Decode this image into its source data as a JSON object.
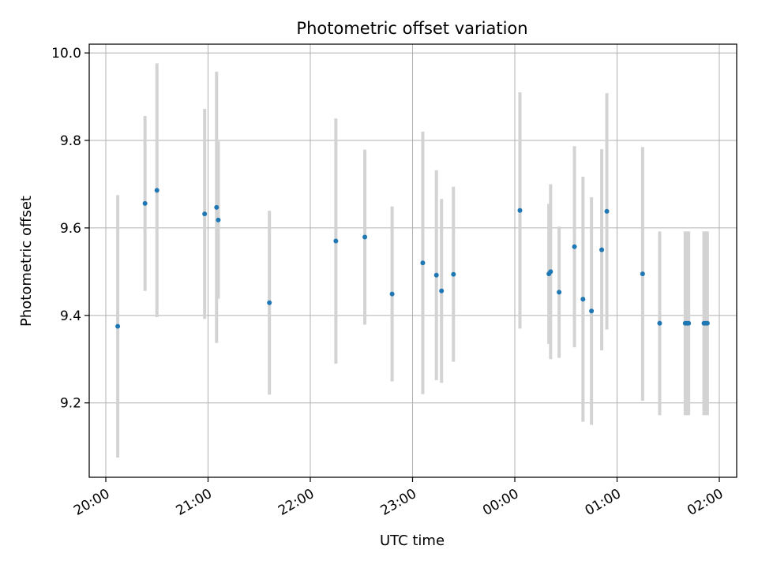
{
  "chart_data": {
    "type": "scatter",
    "title": "Photometric offset variation",
    "xlabel": "UTC time",
    "ylabel": "Photometric offset",
    "x_tick_labels": [
      "20:00",
      "21:00",
      "22:00",
      "23:00",
      "00:00",
      "01:00",
      "02:00"
    ],
    "y_tick_labels": [
      "9.2",
      "9.4",
      "9.6",
      "9.8",
      "10.0"
    ],
    "y_ticks": [
      9.2,
      9.4,
      9.6,
      9.8,
      10.0
    ],
    "ylim": [
      9.03,
      10.02
    ],
    "grid": true,
    "colors": {
      "point": "#1f77b4",
      "errorbar": "#d3d3d3",
      "grid": "#b0b0b0"
    },
    "points": [
      {
        "time": "20:07",
        "y": 9.375,
        "yerr": 0.3
      },
      {
        "time": "20:23",
        "y": 9.656,
        "yerr": 0.2
      },
      {
        "time": "20:30",
        "y": 9.686,
        "yerr": 0.29
      },
      {
        "time": "20:58",
        "y": 9.632,
        "yerr": 0.24
      },
      {
        "time": "21:05",
        "y": 9.647,
        "yerr": 0.31
      },
      {
        "time": "21:06",
        "y": 9.618,
        "yerr": 0.18
      },
      {
        "time": "21:36",
        "y": 9.429,
        "yerr": 0.21
      },
      {
        "time": "22:15",
        "y": 9.57,
        "yerr": 0.28
      },
      {
        "time": "22:32",
        "y": 9.579,
        "yerr": 0.2
      },
      {
        "time": "22:48",
        "y": 9.449,
        "yerr": 0.2
      },
      {
        "time": "23:06",
        "y": 9.52,
        "yerr": 0.3
      },
      {
        "time": "23:14",
        "y": 9.492,
        "yerr": 0.24
      },
      {
        "time": "23:17",
        "y": 9.456,
        "yerr": 0.21
      },
      {
        "time": "23:24",
        "y": 9.494,
        "yerr": 0.2
      },
      {
        "time": "00:03",
        "y": 9.64,
        "yerr": 0.27
      },
      {
        "time": "00:20",
        "y": 9.495,
        "yerr": 0.16
      },
      {
        "time": "00:21",
        "y": 9.5,
        "yerr": 0.2
      },
      {
        "time": "00:26",
        "y": 9.453,
        "yerr": 0.15
      },
      {
        "time": "00:35",
        "y": 9.557,
        "yerr": 0.23
      },
      {
        "time": "00:40",
        "y": 9.437,
        "yerr": 0.28
      },
      {
        "time": "00:45",
        "y": 9.41,
        "yerr": 0.26
      },
      {
        "time": "00:51",
        "y": 9.55,
        "yerr": 0.23
      },
      {
        "time": "00:54",
        "y": 9.638,
        "yerr": 0.27
      },
      {
        "time": "01:15",
        "y": 9.495,
        "yerr": 0.29
      },
      {
        "time": "01:25",
        "y": 9.382,
        "yerr": 0.21
      },
      {
        "time": "01:40",
        "y": 9.382,
        "yerr": 0.21
      },
      {
        "time": "01:41",
        "y": 9.382,
        "yerr": 0.21
      },
      {
        "time": "01:42",
        "y": 9.382,
        "yerr": 0.21
      },
      {
        "time": "01:51",
        "y": 9.382,
        "yerr": 0.21
      },
      {
        "time": "01:52",
        "y": 9.382,
        "yerr": 0.21
      },
      {
        "time": "01:53",
        "y": 9.382,
        "yerr": 0.21
      }
    ]
  }
}
